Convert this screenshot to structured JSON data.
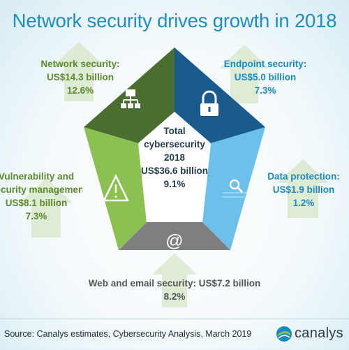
{
  "title": "Network security drives growth in 2018",
  "center": {
    "line1": "Total",
    "line2": "cybersecurity",
    "line3": "2018",
    "line4": "US$36.6 billion",
    "line5": "9.1%"
  },
  "footer": {
    "source": "Source: Canalys estimates, Cybersecurity Analysis, March 2019",
    "brand": "canalys"
  },
  "colors": {
    "title": "#1d8ec0",
    "network": "#4a6e2f",
    "endpoint": "#1a5b8e",
    "data": "#6bc1ec",
    "web": "#7f7f7f",
    "vulnerability": "#8cc152",
    "label_green": "#5a8a2c",
    "label_blue": "#1b8ac2",
    "label_gray": "#555555",
    "arrow_green": "#dbe9cc"
  },
  "chart_data": {
    "type": "pie",
    "title": "Network security drives growth in 2018",
    "total": {
      "label": "Total cybersecurity 2018",
      "value": 36.6,
      "unit": "US$ billion",
      "growth_pct": 9.1
    },
    "segments": [
      {
        "id": "network",
        "label": "Network security:",
        "value": 14.3,
        "value_text": "US$14.3 billion",
        "growth_pct": 12.6,
        "growth_text": "12.6%",
        "icon": "network-icon",
        "color": "#4a6e2f"
      },
      {
        "id": "endpoint",
        "label": "Endpoint security:",
        "value": 5.0,
        "value_text": "US$5.0 billion",
        "growth_pct": 7.3,
        "growth_text": "7.3%",
        "icon": "lock-icon",
        "color": "#1a5b8e"
      },
      {
        "id": "data",
        "label": "Data protection:",
        "value": 1.9,
        "value_text": "US$1.9 billion",
        "growth_pct": 1.2,
        "growth_text": "1.2%",
        "icon": "magnifier-icon",
        "color": "#6bc1ec"
      },
      {
        "id": "web",
        "label": "Web and email security:",
        "value": 7.2,
        "value_text": "US$7.2 billion",
        "growth_pct": 8.2,
        "growth_text": "8.2%",
        "icon": "at-icon",
        "color": "#7f7f7f"
      },
      {
        "id": "vulnerability",
        "label_line1": "Vulnerability and",
        "label_line2": "security management:",
        "value": 8.1,
        "value_text": "US$8.1 billion",
        "growth_pct": 7.3,
        "growth_text": "7.3%",
        "icon": "warning-icon",
        "color": "#8cc152"
      }
    ]
  }
}
